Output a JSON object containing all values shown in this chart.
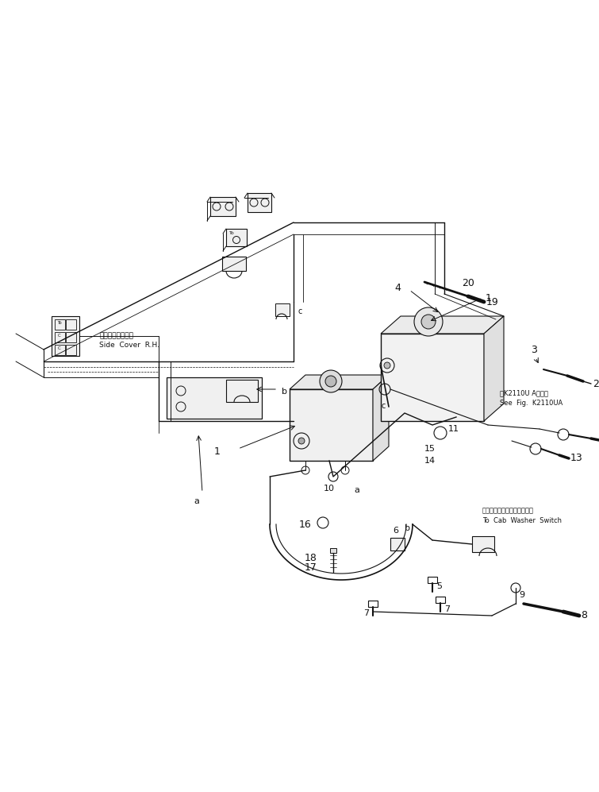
{
  "background_color": "#ffffff",
  "line_color": "#111111",
  "text_color": "#111111",
  "fig_width": 7.55,
  "fig_height": 9.97,
  "dpi": 100,
  "annotations": {
    "side_cover_jp": "サイドカバー　右",
    "side_cover_en": "Side  Cover  R.H.",
    "see_fig_jp": "第K2110U A図参照",
    "see_fig_en": "See  Fig.  K2110UA",
    "to_cab_jp": "キャブウォッシャスイッチへ",
    "to_cab_en": "To  Cab  Washer  Switch"
  }
}
